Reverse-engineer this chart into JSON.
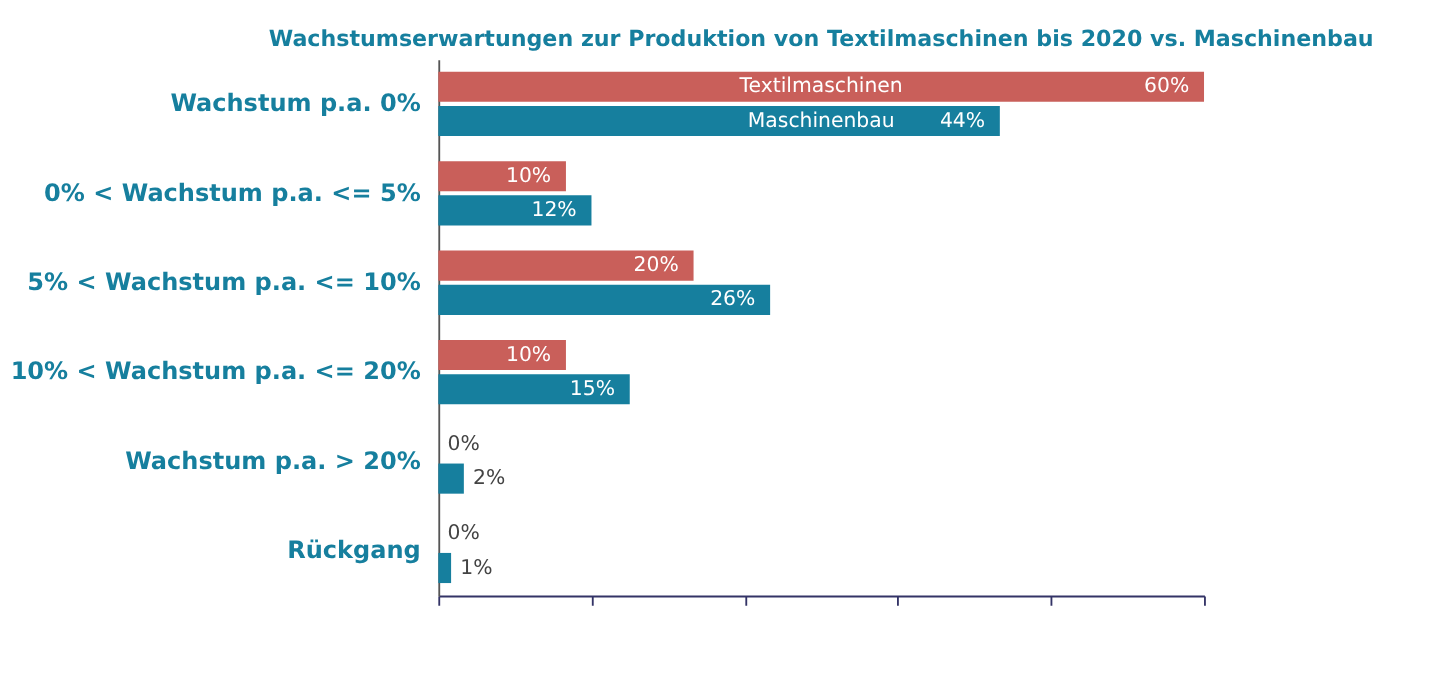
{
  "chart_data": {
    "type": "bar",
    "orientation": "horizontal",
    "title": "Wachstumserwartungen zur Produktion von Textilmaschinen bis 2020 vs. Maschinenbau",
    "categories": [
      "Wachstum p.a. 0%",
      "0% < Wachstum p.a. <= 5%",
      "5% < Wachstum p.a. <= 10%",
      "10% < Wachstum p.a. <= 20%",
      "Wachstum p.a. > 20%",
      "Rückgang"
    ],
    "series": [
      {
        "name": "Textilmaschinen",
        "color": "#c95f5a",
        "values": [
          60,
          10,
          20,
          10,
          0,
          0
        ],
        "value_labels": [
          "60%",
          "10%",
          "20%",
          "10%",
          "0%",
          "0%"
        ]
      },
      {
        "name": "Maschinenbau",
        "color": "#167f9e",
        "values": [
          44,
          12,
          26,
          15,
          2,
          1
        ],
        "value_labels": [
          "44%",
          "12%",
          "26%",
          "15%",
          "2%",
          "1%"
        ]
      }
    ],
    "xlim": [
      0,
      60
    ],
    "xticks": [
      {
        "value": 0,
        "label": null
      },
      {
        "value": 12,
        "label": null
      },
      {
        "value": 24,
        "label": null
      },
      {
        "value": 36,
        "label": null
      },
      {
        "value": 48,
        "label": null
      },
      {
        "value": 60,
        "label": null
      }
    ],
    "tick_labels": false,
    "legend": false,
    "grid": false
  }
}
